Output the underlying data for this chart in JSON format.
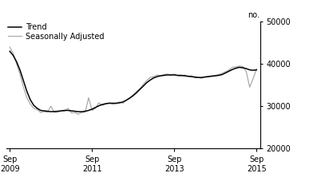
{
  "title": "",
  "ylabel_right": "no.",
  "ylim": [
    20000,
    50000
  ],
  "yticks": [
    20000,
    30000,
    40000,
    50000
  ],
  "xlim_start": 2009.583,
  "xlim_end": 2015.75,
  "xtick_positions": [
    2009.667,
    2011.667,
    2013.667,
    2015.667
  ],
  "xtick_labels": [
    "Sep\n2009",
    "Sep\n2011",
    "Sep\n2013",
    "Sep\n2015"
  ],
  "legend_entries": [
    "Trend",
    "Seasonally Adjusted"
  ],
  "trend_color": "#000000",
  "seasonal_color": "#aaaaaa",
  "background_color": "#ffffff",
  "trend_data": [
    [
      2009.667,
      43000
    ],
    [
      2009.75,
      42000
    ],
    [
      2009.833,
      40500
    ],
    [
      2009.917,
      38500
    ],
    [
      2010.0,
      36000
    ],
    [
      2010.083,
      33500
    ],
    [
      2010.167,
      31500
    ],
    [
      2010.25,
      30200
    ],
    [
      2010.333,
      29500
    ],
    [
      2010.417,
      29000
    ],
    [
      2010.5,
      28900
    ],
    [
      2010.583,
      28800
    ],
    [
      2010.667,
      28700
    ],
    [
      2010.75,
      28750
    ],
    [
      2010.833,
      28800
    ],
    [
      2010.917,
      28900
    ],
    [
      2011.0,
      29000
    ],
    [
      2011.083,
      29000
    ],
    [
      2011.167,
      28900
    ],
    [
      2011.25,
      28800
    ],
    [
      2011.333,
      28700
    ],
    [
      2011.417,
      28700
    ],
    [
      2011.5,
      28800
    ],
    [
      2011.583,
      29000
    ],
    [
      2011.667,
      29300
    ],
    [
      2011.75,
      29700
    ],
    [
      2011.833,
      30100
    ],
    [
      2011.917,
      30400
    ],
    [
      2012.0,
      30600
    ],
    [
      2012.083,
      30700
    ],
    [
      2012.167,
      30700
    ],
    [
      2012.25,
      30700
    ],
    [
      2012.333,
      30800
    ],
    [
      2012.417,
      31000
    ],
    [
      2012.5,
      31400
    ],
    [
      2012.583,
      31900
    ],
    [
      2012.667,
      32500
    ],
    [
      2012.75,
      33200
    ],
    [
      2012.833,
      34000
    ],
    [
      2012.917,
      34800
    ],
    [
      2013.0,
      35600
    ],
    [
      2013.083,
      36200
    ],
    [
      2013.167,
      36700
    ],
    [
      2013.25,
      37000
    ],
    [
      2013.333,
      37200
    ],
    [
      2013.417,
      37300
    ],
    [
      2013.5,
      37400
    ],
    [
      2013.583,
      37400
    ],
    [
      2013.667,
      37400
    ],
    [
      2013.75,
      37300
    ],
    [
      2013.833,
      37300
    ],
    [
      2013.917,
      37200
    ],
    [
      2014.0,
      37100
    ],
    [
      2014.083,
      37000
    ],
    [
      2014.167,
      36900
    ],
    [
      2014.25,
      36800
    ],
    [
      2014.333,
      36800
    ],
    [
      2014.417,
      36900
    ],
    [
      2014.5,
      37000
    ],
    [
      2014.583,
      37100
    ],
    [
      2014.667,
      37200
    ],
    [
      2014.75,
      37300
    ],
    [
      2014.833,
      37500
    ],
    [
      2014.917,
      37900
    ],
    [
      2015.0,
      38300
    ],
    [
      2015.083,
      38700
    ],
    [
      2015.167,
      39000
    ],
    [
      2015.25,
      39200
    ],
    [
      2015.333,
      39100
    ],
    [
      2015.417,
      38900
    ],
    [
      2015.5,
      38600
    ],
    [
      2015.583,
      38500
    ],
    [
      2015.667,
      38600
    ]
  ],
  "seasonal_data": [
    [
      2009.667,
      44000
    ],
    [
      2009.75,
      42500
    ],
    [
      2009.833,
      40000
    ],
    [
      2009.917,
      37500
    ],
    [
      2010.0,
      34500
    ],
    [
      2010.083,
      32000
    ],
    [
      2010.167,
      30500
    ],
    [
      2010.25,
      29500
    ],
    [
      2010.333,
      29200
    ],
    [
      2010.417,
      28500
    ],
    [
      2010.5,
      28700
    ],
    [
      2010.583,
      28600
    ],
    [
      2010.667,
      30000
    ],
    [
      2010.75,
      28500
    ],
    [
      2010.833,
      28600
    ],
    [
      2010.917,
      28900
    ],
    [
      2011.0,
      28800
    ],
    [
      2011.083,
      29500
    ],
    [
      2011.167,
      28400
    ],
    [
      2011.25,
      28500
    ],
    [
      2011.333,
      28100
    ],
    [
      2011.417,
      28500
    ],
    [
      2011.5,
      28600
    ],
    [
      2011.583,
      32000
    ],
    [
      2011.667,
      29000
    ],
    [
      2011.75,
      29500
    ],
    [
      2011.833,
      30800
    ],
    [
      2011.917,
      30200
    ],
    [
      2012.0,
      30500
    ],
    [
      2012.083,
      30800
    ],
    [
      2012.167,
      30500
    ],
    [
      2012.25,
      30600
    ],
    [
      2012.333,
      31000
    ],
    [
      2012.417,
      30700
    ],
    [
      2012.5,
      31500
    ],
    [
      2012.583,
      32000
    ],
    [
      2012.667,
      32700
    ],
    [
      2012.75,
      33500
    ],
    [
      2012.833,
      34200
    ],
    [
      2012.917,
      35200
    ],
    [
      2013.0,
      36100
    ],
    [
      2013.083,
      36800
    ],
    [
      2013.167,
      37000
    ],
    [
      2013.25,
      37400
    ],
    [
      2013.333,
      37200
    ],
    [
      2013.417,
      37500
    ],
    [
      2013.5,
      37600
    ],
    [
      2013.583,
      37300
    ],
    [
      2013.667,
      37600
    ],
    [
      2013.75,
      37200
    ],
    [
      2013.833,
      37100
    ],
    [
      2013.917,
      37400
    ],
    [
      2014.0,
      37000
    ],
    [
      2014.083,
      37200
    ],
    [
      2014.167,
      36700
    ],
    [
      2014.25,
      36800
    ],
    [
      2014.333,
      36600
    ],
    [
      2014.417,
      37000
    ],
    [
      2014.5,
      37100
    ],
    [
      2014.583,
      37200
    ],
    [
      2014.667,
      37300
    ],
    [
      2014.75,
      37500
    ],
    [
      2014.833,
      37800
    ],
    [
      2014.917,
      38200
    ],
    [
      2015.0,
      38600
    ],
    [
      2015.083,
      39200
    ],
    [
      2015.167,
      39300
    ],
    [
      2015.25,
      39500
    ],
    [
      2015.333,
      39400
    ],
    [
      2015.417,
      38200
    ],
    [
      2015.5,
      34500
    ],
    [
      2015.583,
      36500
    ],
    [
      2015.667,
      38800
    ]
  ]
}
